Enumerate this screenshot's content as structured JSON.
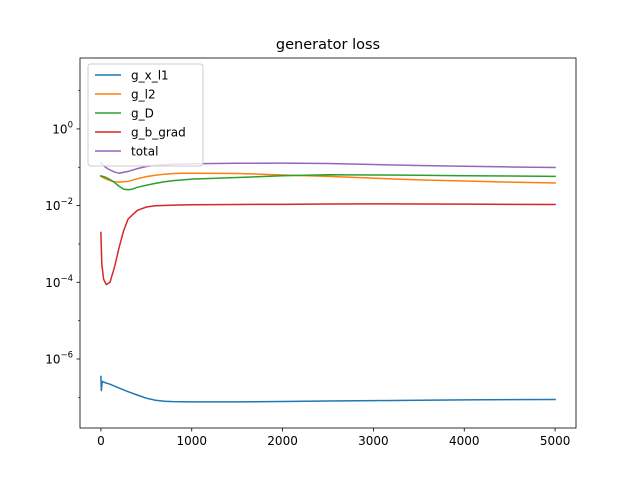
{
  "chart_data": {
    "type": "line",
    "title": "generator loss",
    "xlabel": "",
    "ylabel": "",
    "xlim": [
      -230,
      5230
    ],
    "ylim_log10": [
      -7.8,
      1.85
    ],
    "yscale": "log",
    "grid": false,
    "legend_position": "top-left",
    "x_ticks": [
      0,
      1000,
      2000,
      3000,
      4000,
      5000
    ],
    "x_tick_labels": [
      "0",
      "1000",
      "2000",
      "3000",
      "4000",
      "5000"
    ],
    "y_ticks_log10": [
      0,
      -2,
      -4,
      -6
    ],
    "y_tick_bases": [
      "10",
      "10",
      "10",
      "10"
    ],
    "y_tick_exponents": [
      "0",
      "−2",
      "−4",
      "−6"
    ],
    "series": [
      {
        "name": "g_x_l1",
        "color": "#1f77b4",
        "points": [
          [
            0,
            3.5e-07
          ],
          [
            5,
            1.5e-07
          ],
          [
            15,
            2.6e-07
          ],
          [
            50,
            2.4e-07
          ],
          [
            100,
            2.2e-07
          ],
          [
            200,
            1.75e-07
          ],
          [
            300,
            1.4e-07
          ],
          [
            400,
            1.15e-07
          ],
          [
            500,
            9.5e-08
          ],
          [
            600,
            8.4e-08
          ],
          [
            700,
            7.9e-08
          ],
          [
            800,
            7.7e-08
          ],
          [
            1000,
            7.6e-08
          ],
          [
            1500,
            7.6e-08
          ],
          [
            2000,
            7.8e-08
          ],
          [
            2500,
            8e-08
          ],
          [
            3000,
            8.2e-08
          ],
          [
            3500,
            8.4e-08
          ],
          [
            4000,
            8.6e-08
          ],
          [
            4500,
            8.7e-08
          ],
          [
            5000,
            8.8e-08
          ]
        ]
      },
      {
        "name": "g_l2",
        "color": "#ff7f0e",
        "points": [
          [
            0,
            0.058
          ],
          [
            50,
            0.05
          ],
          [
            100,
            0.045
          ],
          [
            150,
            0.042
          ],
          [
            200,
            0.041
          ],
          [
            300,
            0.043
          ],
          [
            400,
            0.05
          ],
          [
            500,
            0.057
          ],
          [
            600,
            0.062
          ],
          [
            700,
            0.066
          ],
          [
            800,
            0.069
          ],
          [
            900,
            0.07
          ],
          [
            1000,
            0.07
          ],
          [
            1500,
            0.069
          ],
          [
            2000,
            0.063
          ],
          [
            2500,
            0.058
          ],
          [
            3000,
            0.052
          ],
          [
            3500,
            0.047
          ],
          [
            4000,
            0.044
          ],
          [
            4500,
            0.041
          ],
          [
            5000,
            0.039
          ]
        ]
      },
      {
        "name": "g_D",
        "color": "#2ca02c",
        "points": [
          [
            0,
            0.06
          ],
          [
            50,
            0.055
          ],
          [
            100,
            0.048
          ],
          [
            150,
            0.04
          ],
          [
            200,
            0.032
          ],
          [
            250,
            0.027
          ],
          [
            300,
            0.026
          ],
          [
            350,
            0.027
          ],
          [
            400,
            0.03
          ],
          [
            500,
            0.034
          ],
          [
            600,
            0.038
          ],
          [
            700,
            0.042
          ],
          [
            800,
            0.045
          ],
          [
            1000,
            0.049
          ],
          [
            1500,
            0.054
          ],
          [
            2000,
            0.06
          ],
          [
            2500,
            0.064
          ],
          [
            3000,
            0.063
          ],
          [
            3500,
            0.062
          ],
          [
            4000,
            0.06
          ],
          [
            4500,
            0.059
          ],
          [
            5000,
            0.058
          ]
        ]
      },
      {
        "name": "g_b_grad",
        "color": "#d62728",
        "points": [
          [
            0,
            0.002
          ],
          [
            10,
            0.0003
          ],
          [
            30,
            0.00012
          ],
          [
            60,
            8.7e-05
          ],
          [
            100,
            0.0001
          ],
          [
            150,
            0.00025
          ],
          [
            200,
            0.0008
          ],
          [
            250,
            0.0022
          ],
          [
            300,
            0.0045
          ],
          [
            400,
            0.0075
          ],
          [
            500,
            0.0092
          ],
          [
            600,
            0.0099
          ],
          [
            800,
            0.0103
          ],
          [
            1000,
            0.0105
          ],
          [
            1500,
            0.0107
          ],
          [
            2000,
            0.0108
          ],
          [
            2500,
            0.011
          ],
          [
            3000,
            0.0111
          ],
          [
            3500,
            0.011
          ],
          [
            4000,
            0.0109
          ],
          [
            4500,
            0.0108
          ],
          [
            5000,
            0.0107
          ]
        ]
      },
      {
        "name": "total",
        "color": "#9467bd",
        "points": [
          [
            0,
            0.13
          ],
          [
            50,
            0.1
          ],
          [
            100,
            0.085
          ],
          [
            150,
            0.075
          ],
          [
            200,
            0.07
          ],
          [
            300,
            0.078
          ],
          [
            400,
            0.092
          ],
          [
            500,
            0.105
          ],
          [
            600,
            0.113
          ],
          [
            800,
            0.12
          ],
          [
            1000,
            0.124
          ],
          [
            1500,
            0.127
          ],
          [
            2000,
            0.128
          ],
          [
            2500,
            0.125
          ],
          [
            3000,
            0.118
          ],
          [
            3500,
            0.111
          ],
          [
            4000,
            0.106
          ],
          [
            4500,
            0.102
          ],
          [
            5000,
            0.099
          ]
        ]
      }
    ]
  }
}
